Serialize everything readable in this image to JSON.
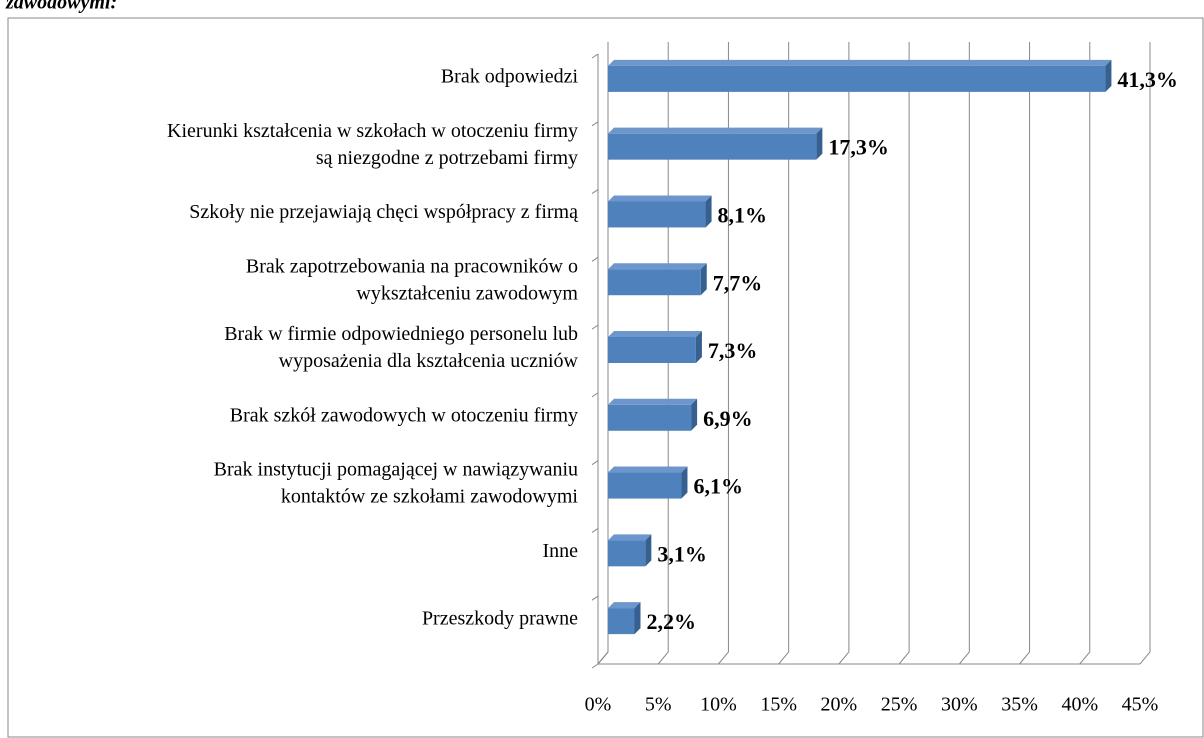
{
  "chart_data": {
    "type": "bar",
    "orientation": "horizontal",
    "title": "zawodowymi:",
    "categories": [
      [
        "Brak odpowiedzi"
      ],
      [
        "Kierunki kształcenia w szkołach w otoczeniu firmy",
        "są niezgodne z potrzebami firmy"
      ],
      [
        "Szkoły nie przejawiają chęci współpracy z firmą"
      ],
      [
        "Brak zapotrzebowania na pracowników o",
        "wykształceniu zawodowym"
      ],
      [
        "Brak w firmie odpowiedniego personelu lub",
        "wyposażenia dla kształcenia uczniów"
      ],
      [
        "Brak szkół zawodowych w otoczeniu firmy"
      ],
      [
        "Brak instytucji pomagającej w nawiązywaniu",
        "kontaktów ze szkołami zawodowymi"
      ],
      [
        "Inne"
      ],
      [
        "Przeszkody prawne"
      ]
    ],
    "values": [
      41.3,
      17.3,
      8.1,
      7.7,
      7.3,
      6.9,
      6.1,
      3.1,
      2.2
    ],
    "value_labels": [
      "41,3%",
      "17,3%",
      "8,1%",
      "7,7%",
      "7,3%",
      "6,9%",
      "6,1%",
      "3,1%",
      "2,2%"
    ],
    "color": "#4f81bd",
    "xlim": [
      0,
      45
    ],
    "xticks": [
      {
        "value": 0,
        "label": "0%"
      },
      {
        "value": 5,
        "label": "5%"
      },
      {
        "value": 10,
        "label": "10%"
      },
      {
        "value": 15,
        "label": "15%"
      },
      {
        "value": 20,
        "label": "20%"
      },
      {
        "value": 25,
        "label": "25%"
      },
      {
        "value": 30,
        "label": "30%"
      },
      {
        "value": 35,
        "label": "35%"
      },
      {
        "value": 40,
        "label": "40%"
      },
      {
        "value": 45,
        "label": "45%"
      }
    ],
    "grid": true
  }
}
